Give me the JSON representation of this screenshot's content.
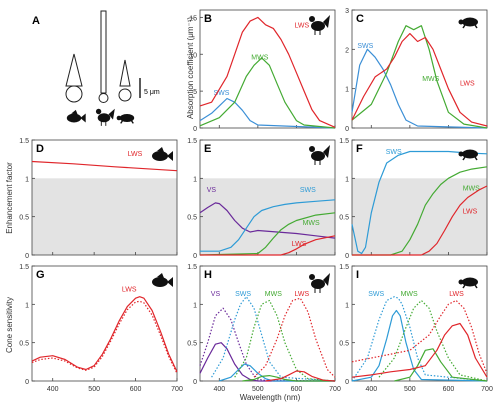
{
  "figure": {
    "panel_labels": [
      "A",
      "B",
      "C",
      "D",
      "E",
      "F",
      "G",
      "H",
      "I"
    ],
    "y_labels": {
      "row1": "Absorption coefficient (μm⁻¹)",
      "row2": "Enhancement factor",
      "row3": "Cone sensitivity"
    },
    "x_label": "Wavelength (nm)",
    "scale_bar": "5 μm",
    "animal_icons": [
      "fish-icon",
      "rooster-icon",
      "turtle-icon"
    ]
  },
  "chart_data": [
    {
      "panel": "B",
      "type": "line",
      "icon": "rooster-icon",
      "xlim": [
        350,
        700
      ],
      "ylim": [
        0,
        16
      ],
      "yticks": [
        0,
        5,
        10,
        15
      ],
      "series": [
        {
          "name": "SWS",
          "color": "#3b8fd6",
          "x": [
            350,
            380,
            400,
            420,
            440,
            460,
            480,
            500,
            700
          ],
          "y": [
            1.0,
            2.0,
            3.0,
            4.0,
            3.5,
            2.4,
            1.0,
            0.4,
            0
          ]
        },
        {
          "name": "MWS",
          "color": "#44aa33",
          "x": [
            350,
            400,
            440,
            470,
            490,
            510,
            530,
            550,
            570,
            600,
            620,
            700
          ],
          "y": [
            0.3,
            1.4,
            3.5,
            7,
            8.5,
            9.5,
            8.5,
            6,
            3.5,
            1,
            0.4,
            0
          ]
        },
        {
          "name": "LWS",
          "color": "#e0262b",
          "x": [
            350,
            380,
            420,
            440,
            460,
            480,
            500,
            520,
            540,
            560,
            580,
            600,
            620,
            640,
            660,
            700
          ],
          "y": [
            3,
            3.5,
            7,
            10,
            13,
            14.5,
            15,
            14,
            13.5,
            12,
            10,
            7.5,
            5,
            2.5,
            1,
            0.1
          ]
        }
      ]
    },
    {
      "panel": "C",
      "type": "line",
      "icon": "turtle-icon",
      "xlim": [
        350,
        700
      ],
      "ylim": [
        0,
        3
      ],
      "yticks": [
        0,
        1,
        2,
        3
      ],
      "series": [
        {
          "name": "SWS",
          "color": "#3b8fd6",
          "x": [
            350,
            370,
            390,
            410,
            430,
            450,
            470,
            490,
            520,
            700
          ],
          "y": [
            0.4,
            1.6,
            2.0,
            1.8,
            1.5,
            1.1,
            0.6,
            0.2,
            0.05,
            0
          ]
        },
        {
          "name": "MWS",
          "color": "#44aa33",
          "x": [
            350,
            400,
            440,
            470,
            490,
            510,
            530,
            550,
            570,
            600,
            640,
            700
          ],
          "y": [
            0.2,
            0.6,
            1.4,
            2.2,
            2.6,
            2.5,
            2.6,
            2.0,
            1.2,
            0.4,
            0.1,
            0
          ]
        },
        {
          "name": "LWS",
          "color": "#e0262b",
          "x": [
            350,
            380,
            410,
            440,
            460,
            480,
            500,
            520,
            540,
            560,
            580,
            600,
            630,
            660,
            700
          ],
          "y": [
            0.2,
            0.8,
            1.3,
            1.5,
            1.8,
            2.2,
            2.4,
            2.2,
            2.3,
            2.0,
            1.5,
            1.0,
            0.4,
            0.15,
            0.05
          ]
        }
      ]
    },
    {
      "panel": "D",
      "type": "line",
      "icon": "fish-icon",
      "xlim": [
        350,
        700
      ],
      "ylim": [
        0,
        1.5
      ],
      "yticks": [
        0,
        0.5,
        1,
        1.5
      ],
      "shade_below": 1,
      "series": [
        {
          "name": "LWS",
          "color": "#e0262b",
          "x": [
            350,
            450,
            550,
            700
          ],
          "y": [
            1.22,
            1.19,
            1.15,
            1.1
          ]
        }
      ]
    },
    {
      "panel": "E",
      "type": "line",
      "icon": "rooster-icon",
      "xlim": [
        350,
        700
      ],
      "ylim": [
        0,
        1.5
      ],
      "yticks": [
        0,
        0.5,
        1,
        1.5
      ],
      "shade_below": 1,
      "series": [
        {
          "name": "VS",
          "color": "#6a2a9a",
          "x": [
            350,
            370,
            390,
            400,
            420,
            440,
            460,
            480,
            500,
            550,
            600,
            650,
            700
          ],
          "y": [
            0.55,
            0.62,
            0.68,
            0.67,
            0.58,
            0.45,
            0.35,
            0.3,
            0.32,
            0.3,
            0.28,
            0.25,
            0.22
          ]
        },
        {
          "name": "SWS",
          "color": "#2e9bd6",
          "x": [
            350,
            400,
            430,
            450,
            470,
            490,
            510,
            540,
            570,
            600,
            650,
            700
          ],
          "y": [
            0.05,
            0.05,
            0.1,
            0.2,
            0.35,
            0.5,
            0.58,
            0.63,
            0.66,
            0.68,
            0.7,
            0.72
          ]
        },
        {
          "name": "MWS",
          "color": "#44aa33",
          "x": [
            350,
            500,
            520,
            540,
            560,
            580,
            600,
            650,
            700
          ],
          "y": [
            0,
            0.02,
            0.1,
            0.22,
            0.33,
            0.4,
            0.45,
            0.52,
            0.55
          ]
        },
        {
          "name": "LWS",
          "color": "#e0262b",
          "x": [
            350,
            560,
            580,
            600,
            620,
            650,
            700
          ],
          "y": [
            0,
            0,
            0.03,
            0.08,
            0.14,
            0.2,
            0.25
          ]
        }
      ]
    },
    {
      "panel": "F",
      "type": "line",
      "icon": "turtle-icon",
      "xlim": [
        350,
        700
      ],
      "ylim": [
        0,
        1.5
      ],
      "yticks": [
        0,
        0.5,
        1,
        1.5
      ],
      "shade_below": 1,
      "series": [
        {
          "name": "SWS",
          "color": "#2e9bd6",
          "x": [
            350,
            365,
            375,
            385,
            400,
            420,
            440,
            470,
            500,
            550,
            600,
            650,
            700
          ],
          "y": [
            0.4,
            0.05,
            0.02,
            0.1,
            0.55,
            0.95,
            1.2,
            1.3,
            1.35,
            1.35,
            1.35,
            1.33,
            1.32
          ]
        },
        {
          "name": "MWS",
          "color": "#44aa33",
          "x": [
            350,
            450,
            480,
            500,
            520,
            540,
            560,
            580,
            600,
            630,
            660,
            700
          ],
          "y": [
            0,
            0,
            0.05,
            0.2,
            0.4,
            0.65,
            0.8,
            0.92,
            1.0,
            1.08,
            1.12,
            1.15
          ]
        },
        {
          "name": "LWS",
          "color": "#e0262b",
          "x": [
            350,
            530,
            550,
            570,
            590,
            610,
            630,
            650,
            680,
            700
          ],
          "y": [
            0,
            0,
            0.05,
            0.15,
            0.32,
            0.5,
            0.65,
            0.75,
            0.85,
            0.9
          ]
        }
      ]
    },
    {
      "panel": "G",
      "type": "line",
      "icon": "fish-icon",
      "xlim": [
        350,
        700
      ],
      "ylim": [
        0,
        1.5
      ],
      "yticks": [
        0,
        0.5,
        1,
        1.5
      ],
      "series": [
        {
          "name": "LWS",
          "color": "#e0262b",
          "style": "solid",
          "x": [
            350,
            370,
            400,
            430,
            460,
            480,
            500,
            520,
            540,
            560,
            580,
            600,
            610,
            620,
            640,
            660,
            680,
            700
          ],
          "y": [
            0.26,
            0.31,
            0.33,
            0.28,
            0.18,
            0.15,
            0.2,
            0.35,
            0.55,
            0.78,
            0.97,
            1.08,
            1.1,
            1.08,
            0.92,
            0.65,
            0.35,
            0.12
          ]
        },
        {
          "name": "LWS",
          "color": "#e0262b",
          "style": "dotted",
          "x": [
            350,
            370,
            400,
            430,
            460,
            480,
            500,
            520,
            540,
            560,
            580,
            600,
            610,
            620,
            640,
            660,
            680,
            700
          ],
          "y": [
            0.24,
            0.28,
            0.3,
            0.26,
            0.17,
            0.14,
            0.18,
            0.32,
            0.52,
            0.74,
            0.93,
            1.03,
            1.04,
            1.02,
            0.86,
            0.6,
            0.32,
            0.1
          ]
        }
      ]
    },
    {
      "panel": "H",
      "type": "line",
      "icon": "rooster-icon",
      "xlim": [
        350,
        700
      ],
      "ylim": [
        0,
        1.5
      ],
      "yticks": [
        0,
        0.5,
        1,
        1.5
      ],
      "series": [
        {
          "name": "VS",
          "color": "#6a2a9a",
          "style": "solid",
          "x": [
            350,
            370,
            390,
            405,
            420,
            440,
            460,
            480,
            500,
            700
          ],
          "y": [
            0.1,
            0.3,
            0.48,
            0.5,
            0.42,
            0.22,
            0.08,
            0.02,
            0,
            0
          ]
        },
        {
          "name": "VS",
          "color": "#6a2a9a",
          "style": "dotted",
          "x": [
            350,
            370,
            390,
            410,
            430,
            450,
            470,
            490,
            510,
            700
          ],
          "y": [
            0.2,
            0.5,
            0.85,
            0.95,
            0.8,
            0.5,
            0.22,
            0.07,
            0.01,
            0
          ]
        },
        {
          "name": "SWS",
          "color": "#2e9bd6",
          "style": "solid",
          "x": [
            400,
            430,
            450,
            465,
            480,
            500,
            520,
            540,
            700
          ],
          "y": [
            0,
            0.05,
            0.15,
            0.22,
            0.2,
            0.1,
            0.03,
            0,
            0
          ]
        },
        {
          "name": "SWS",
          "color": "#2e9bd6",
          "style": "dotted",
          "x": [
            380,
            410,
            440,
            455,
            470,
            490,
            510,
            530,
            560,
            700
          ],
          "y": [
            0.05,
            0.3,
            0.8,
            1.0,
            1.1,
            0.95,
            0.6,
            0.25,
            0.05,
            0
          ]
        },
        {
          "name": "MWS",
          "color": "#44aa33",
          "style": "solid",
          "x": [
            460,
            490,
            510,
            530,
            550,
            570,
            600,
            700
          ],
          "y": [
            0,
            0.02,
            0.06,
            0.07,
            0.05,
            0.02,
            0,
            0
          ]
        },
        {
          "name": "MWS",
          "color": "#44aa33",
          "style": "dotted",
          "x": [
            440,
            470,
            490,
            510,
            530,
            550,
            570,
            600,
            630,
            700
          ],
          "y": [
            0.05,
            0.3,
            0.7,
            1.0,
            1.05,
            0.85,
            0.5,
            0.15,
            0.03,
            0
          ]
        },
        {
          "name": "LWS",
          "color": "#e0262b",
          "style": "solid",
          "x": [
            520,
            560,
            580,
            600,
            620,
            640,
            670,
            700
          ],
          "y": [
            0,
            0.03,
            0.08,
            0.13,
            0.12,
            0.06,
            0.01,
            0
          ]
        },
        {
          "name": "LWS",
          "color": "#e0262b",
          "style": "dotted",
          "x": [
            490,
            520,
            550,
            570,
            590,
            610,
            630,
            650,
            680,
            700
          ],
          "y": [
            0.05,
            0.2,
            0.55,
            0.85,
            1.05,
            1.08,
            0.9,
            0.55,
            0.15,
            0.05
          ]
        }
      ]
    },
    {
      "panel": "I",
      "type": "line",
      "icon": "turtle-icon",
      "xlim": [
        350,
        700
      ],
      "ylim": [
        0,
        1.5
      ],
      "yticks": [
        0,
        0.5,
        1,
        1.5
      ],
      "series": [
        {
          "name": "SWS",
          "color": "#2e9bd6",
          "style": "solid",
          "x": [
            350,
            400,
            420,
            440,
            455,
            465,
            475,
            490,
            510,
            530,
            700
          ],
          "y": [
            0,
            0.05,
            0.2,
            0.55,
            0.85,
            0.92,
            0.85,
            0.5,
            0.15,
            0.02,
            0
          ]
        },
        {
          "name": "SWS",
          "color": "#2e9bd6",
          "style": "dotted",
          "x": [
            350,
            390,
            420,
            440,
            460,
            470,
            480,
            500,
            520,
            540,
            700
          ],
          "y": [
            0,
            0.3,
            0.8,
            1.05,
            1.1,
            1.08,
            1.0,
            0.7,
            0.3,
            0.08,
            0
          ]
        },
        {
          "name": "MWS",
          "color": "#44aa33",
          "style": "solid",
          "x": [
            460,
            500,
            520,
            540,
            560,
            580,
            610,
            700
          ],
          "y": [
            0,
            0.05,
            0.2,
            0.4,
            0.42,
            0.25,
            0.05,
            0
          ]
        },
        {
          "name": "MWS",
          "color": "#44aa33",
          "style": "dotted",
          "x": [
            420,
            460,
            490,
            510,
            530,
            550,
            570,
            600,
            630,
            700
          ],
          "y": [
            0.05,
            0.3,
            0.7,
            0.95,
            1.05,
            0.95,
            0.65,
            0.3,
            0.08,
            0
          ]
        },
        {
          "name": "LWS",
          "color": "#e0262b",
          "style": "solid",
          "x": [
            350,
            400,
            450,
            500,
            540,
            570,
            590,
            610,
            630,
            650,
            670,
            700
          ],
          "y": [
            0.05,
            0.08,
            0.12,
            0.15,
            0.2,
            0.4,
            0.6,
            0.72,
            0.75,
            0.6,
            0.3,
            0.05
          ]
        },
        {
          "name": "LWS",
          "color": "#e0262b",
          "style": "dotted",
          "x": [
            350,
            400,
            450,
            500,
            550,
            580,
            600,
            620,
            640,
            660,
            680,
            700
          ],
          "y": [
            0.25,
            0.3,
            0.35,
            0.4,
            0.6,
            0.85,
            1.0,
            1.05,
            0.95,
            0.7,
            0.35,
            0.1
          ]
        }
      ]
    }
  ]
}
